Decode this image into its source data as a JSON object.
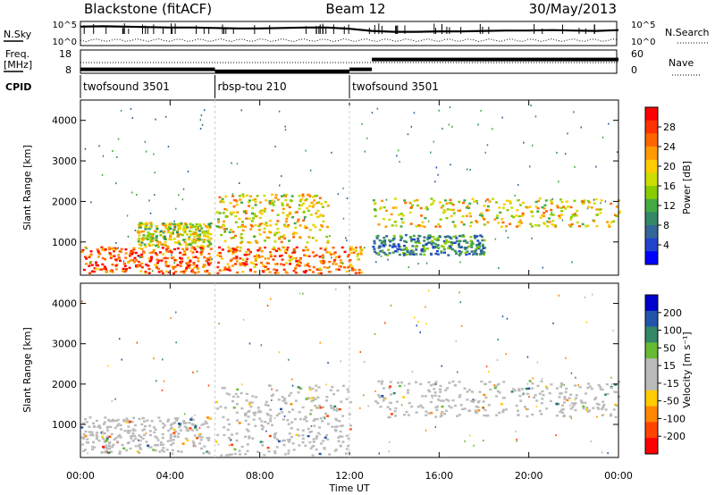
{
  "header": {
    "station": "Blackstone (fitACF)",
    "beam": "Beam 12",
    "date": "30/May/2013"
  },
  "noise_panel": {
    "left_label": "N.Sky",
    "right_label": "N.Search",
    "left_ticks": [
      "10^5",
      "10^0"
    ],
    "right_ticks": [
      "10^5",
      "10^0"
    ]
  },
  "freq_panel": {
    "left_label_1": "Freq.",
    "left_label_2": "[MHz]",
    "right_label": "Nave",
    "left_ticks": [
      "18",
      "8"
    ],
    "right_ticks": [
      "60",
      "0"
    ]
  },
  "cpid": {
    "label": "CPID",
    "segments": [
      {
        "name": "twofsound 3501",
        "start_hour": 0,
        "end_hour": 6
      },
      {
        "name": "rbsp-tou 210",
        "start_hour": 6,
        "end_hour": 12
      },
      {
        "name": "twofsound 3501",
        "start_hour": 12,
        "end_hour": 24
      }
    ]
  },
  "power_colorbar": {
    "label": "Power [dB]",
    "ticks": [
      "28",
      "24",
      "20",
      "16",
      "12",
      "8",
      "4"
    ],
    "colors": [
      "#ff0000",
      "#ff3300",
      "#ff6600",
      "#ff9900",
      "#ffcc00",
      "#ccdd00",
      "#88cc00",
      "#44aa44",
      "#338866",
      "#336699",
      "#2244cc",
      "#0000ff"
    ]
  },
  "velocity_colorbar": {
    "label": "Velocity [m s⁻¹]",
    "ticks": [
      "200",
      "100",
      "50",
      "15",
      "-15",
      "-50",
      "-100",
      "-200"
    ],
    "colors": [
      "#0000cc",
      "#2255aa",
      "#338866",
      "#66bb33",
      "#bbbbbb",
      "#bbbbbb",
      "#ffcc00",
      "#ff8800",
      "#ff4400",
      "#ff0000"
    ]
  },
  "chart_data": {
    "type": "heatmap",
    "xlabel": "Time UT",
    "ylabel": "Slant Range [km]",
    "x_tick_labels": [
      "00:00",
      "04:00",
      "08:00",
      "12:00",
      "16:00",
      "20:00",
      "00:00"
    ],
    "x_range_hours": [
      0,
      24
    ],
    "y_ticks": [
      1000,
      2000,
      3000,
      4000
    ],
    "y_range_km": [
      180,
      4500
    ],
    "nsky_series": {
      "hours": [
        0,
        1,
        2,
        3,
        4,
        5,
        6,
        7,
        8,
        9,
        10,
        11,
        12,
        13,
        14,
        15,
        16,
        17,
        18,
        19,
        20,
        21,
        22,
        23,
        24
      ],
      "log_values": [
        4.2,
        4.3,
        4.2,
        4.1,
        4.0,
        4.0,
        3.9,
        3.8,
        3.8,
        3.9,
        4.0,
        4.0,
        3.7,
        3.2,
        3.0,
        3.0,
        3.1,
        3.1,
        3.2,
        3.3,
        3.3,
        3.4,
        3.3,
        3.2,
        3.4
      ]
    },
    "freq_series": [
      {
        "start_hour": 0,
        "end_hour": 6,
        "mhz": 10
      },
      {
        "start_hour": 6,
        "end_hour": 12,
        "mhz": 9
      },
      {
        "start_hour": 12,
        "end_hour": 13,
        "mhz": 10
      },
      {
        "start_hour": 13,
        "end_hour": 24,
        "mhz": 15
      }
    ],
    "power_bands": [
      {
        "name": "early-low-range",
        "start_hour": 0,
        "end_hour": 5.8,
        "range_start_km": 250,
        "range_end_km": 900,
        "power_db": 26
      },
      {
        "name": "early-mid-range",
        "start_hour": 2.5,
        "end_hour": 5.8,
        "range_start_km": 900,
        "range_end_km": 1500,
        "power_db": 16
      },
      {
        "name": "midday-arc",
        "start_hour": 6,
        "end_hour": 11,
        "range_start_km": 1000,
        "range_end_km": 2200,
        "power_db": 18
      },
      {
        "name": "midday-low",
        "start_hour": 6,
        "end_hour": 12.5,
        "range_start_km": 250,
        "range_end_km": 900,
        "power_db": 24
      },
      {
        "name": "afternoon-band",
        "start_hour": 13,
        "end_hour": 24,
        "range_start_km": 1400,
        "range_end_km": 2100,
        "power_db": 18
      },
      {
        "name": "evening-lower",
        "start_hour": 13,
        "end_hour": 18,
        "range_start_km": 700,
        "range_end_km": 1200,
        "power_db": 8
      }
    ],
    "velocity_bands": [
      {
        "name": "early-low-range",
        "start_hour": 0,
        "end_hour": 5.8,
        "range_start_km": 300,
        "range_end_km": 1200,
        "velocity": -15
      },
      {
        "name": "midday-slab",
        "start_hour": 6,
        "end_hour": 12,
        "range_start_km": 250,
        "range_end_km": 2000,
        "velocity": 15
      },
      {
        "name": "afternoon-band",
        "start_hour": 13,
        "end_hour": 24,
        "range_start_km": 1200,
        "range_end_km": 2100,
        "velocity": -15
      }
    ]
  }
}
